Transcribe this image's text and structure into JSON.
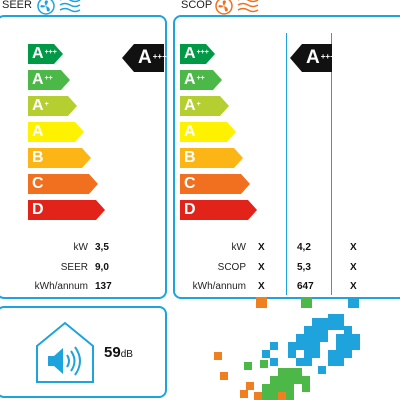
{
  "seer": {
    "header": "SEER",
    "classes": [
      {
        "letter": "A",
        "sup": "+++",
        "color": "#009a47"
      },
      {
        "letter": "A",
        "sup": "++",
        "color": "#4cb848"
      },
      {
        "letter": "A",
        "sup": "+",
        "color": "#b5cf30"
      },
      {
        "letter": "A",
        "sup": "",
        "color": "#fff200"
      },
      {
        "letter": "B",
        "sup": "",
        "color": "#fbb515"
      },
      {
        "letter": "C",
        "sup": "",
        "color": "#f07020"
      },
      {
        "letter": "D",
        "sup": "",
        "color": "#e2231a"
      }
    ],
    "rating": {
      "letter": "A",
      "sup": "+++"
    },
    "rows": [
      {
        "label": "kW",
        "value": "3,5"
      },
      {
        "label": "SEER",
        "value": "9,0"
      },
      {
        "label": "kWh/annum",
        "value": "137"
      }
    ]
  },
  "scop": {
    "header": "SCOP",
    "classes": [
      {
        "letter": "A",
        "sup": "+++",
        "color": "#009a47"
      },
      {
        "letter": "A",
        "sup": "++",
        "color": "#4cb848"
      },
      {
        "letter": "A",
        "sup": "+",
        "color": "#b5cf30"
      },
      {
        "letter": "A",
        "sup": "",
        "color": "#fff200"
      },
      {
        "letter": "B",
        "sup": "",
        "color": "#fbb515"
      },
      {
        "letter": "C",
        "sup": "",
        "color": "#f07020"
      },
      {
        "letter": "D",
        "sup": "",
        "color": "#e2231a"
      }
    ],
    "rating": {
      "letter": "A",
      "sup": "+++"
    },
    "rows": [
      {
        "label": "kW",
        "c1": "X",
        "c2": "4,2",
        "c3": "X"
      },
      {
        "label": "SCOP",
        "c1": "X",
        "c2": "5,3",
        "c3": "X"
      },
      {
        "label": "kWh/annum",
        "c1": "X",
        "c2": "647",
        "c3": "X"
      }
    ],
    "zone_colors": [
      "#f07f20",
      "#4cb848",
      "#1fa3dc"
    ]
  },
  "noise": {
    "value": "59",
    "unit": "dB"
  },
  "colors": {
    "accent": "#1fa3dc",
    "badge": "#111111"
  }
}
